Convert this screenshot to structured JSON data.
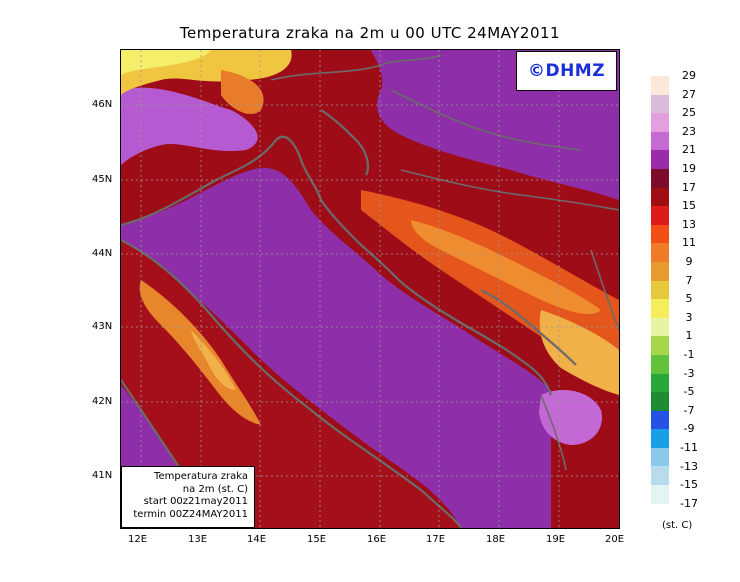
{
  "title": "Temperatura zraka na 2m u 00 UTC 24MAY2011",
  "watermark": "©DHMZ",
  "info": {
    "line1": "Temperatura zraka",
    "line2": "na 2m (st. C)",
    "line3": "start 00z21may2011",
    "line4": "termin 00Z24MAY2011"
  },
  "lat_labels": [
    "46N",
    "45N",
    "44N",
    "43N",
    "42N",
    "41N"
  ],
  "lon_labels": [
    "12E",
    "13E",
    "14E",
    "15E",
    "16E",
    "17E",
    "18E",
    "19E",
    "20E"
  ],
  "legend": {
    "unit": "(st. C)",
    "labels": [
      "29",
      "27",
      "25",
      "23",
      "21",
      "19",
      "17",
      "15",
      "13",
      "11",
      "9",
      "7",
      "5",
      "3",
      "1",
      "-1",
      "-3",
      "-5",
      "-7",
      "-9",
      "-11",
      "-13",
      "-15",
      "-17"
    ],
    "colors": [
      "#fbe8d8",
      "#d9bcd9",
      "#e39fe0",
      "#c66ad3",
      "#9a2ba9",
      "#7c0b2c",
      "#a00d13",
      "#de1a1a",
      "#f24e16",
      "#f07a26",
      "#e89a2e",
      "#e6c93a",
      "#f5ee5a",
      "#e6f3a3",
      "#a8d64b",
      "#62c23b",
      "#28a83a",
      "#1e8c33",
      "#2552e6",
      "#17a0e5",
      "#8ac9ec",
      "#b8dceb",
      "#e2f4f4"
    ]
  },
  "colors": {
    "sea": "#8e2fa9",
    "land_warm": "#a50f1a",
    "coast": "#6b6b6b",
    "watermark": "#1a2fd8"
  }
}
